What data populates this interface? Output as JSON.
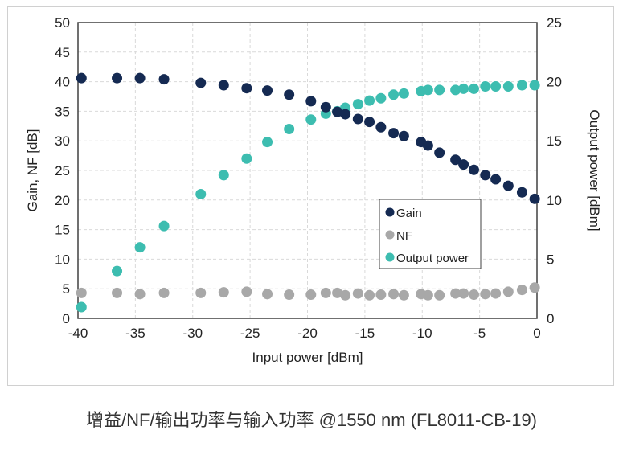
{
  "chart_data": {
    "type": "scatter",
    "xlabel": "Input power [dBm]",
    "ylabel": "Gain, NF [dB]",
    "y2label": "Output power [dBm]",
    "xlim": [
      -40,
      0
    ],
    "ylim": [
      0,
      50
    ],
    "y2lim": [
      0,
      25
    ],
    "xticks": [
      -40,
      -35,
      -30,
      -25,
      -20,
      -15,
      -10,
      -5,
      0
    ],
    "yticks": [
      0,
      5,
      10,
      15,
      20,
      25,
      30,
      35,
      40,
      45,
      50
    ],
    "y2ticks": [
      0,
      5,
      10,
      15,
      20,
      25
    ],
    "grid": true,
    "legend_position": "center-right",
    "x": [
      -39.7,
      -36.6,
      -34.6,
      -32.5,
      -29.3,
      -27.3,
      -25.3,
      -23.5,
      -21.6,
      -19.7,
      -18.4,
      -17.4,
      -16.7,
      -15.6,
      -14.6,
      -13.6,
      -12.5,
      -11.6,
      -10.1,
      -9.5,
      -8.5,
      -7.1,
      -6.4,
      -5.5,
      -4.5,
      -3.6,
      -2.5,
      -1.3,
      -0.2
    ],
    "series": [
      {
        "name": "Gain",
        "axis": "left",
        "color": "#152a52",
        "values": [
          40.6,
          40.6,
          40.6,
          40.4,
          39.8,
          39.4,
          38.9,
          38.5,
          37.8,
          36.7,
          35.7,
          34.9,
          34.5,
          33.7,
          33.2,
          32.3,
          31.3,
          30.8,
          29.8,
          29.2,
          28.0,
          26.8,
          26.0,
          25.1,
          24.2,
          23.5,
          22.4,
          21.3,
          20.2
        ]
      },
      {
        "name": "NF",
        "axis": "left",
        "color": "#a8a8a8",
        "values": [
          4.3,
          4.3,
          4.1,
          4.3,
          4.3,
          4.4,
          4.5,
          4.1,
          4.0,
          4.0,
          4.3,
          4.3,
          3.9,
          4.2,
          3.9,
          4.0,
          4.1,
          3.9,
          4.1,
          3.9,
          3.9,
          4.2,
          4.2,
          4.0,
          4.1,
          4.2,
          4.5,
          4.8,
          5.2
        ]
      },
      {
        "name": "Output power",
        "axis": "right",
        "color": "#3dbdb0",
        "values": [
          0.95,
          4.0,
          6.0,
          7.8,
          10.5,
          12.1,
          13.5,
          14.9,
          16.0,
          16.8,
          17.3,
          17.5,
          17.8,
          18.1,
          18.4,
          18.6,
          18.9,
          19.0,
          19.2,
          19.3,
          19.3,
          19.3,
          19.4,
          19.4,
          19.6,
          19.6,
          19.6,
          19.7,
          19.7
        ]
      }
    ]
  },
  "caption": "增益/NF/输出功率与输入功率 @1550 nm (FL8011-CB-19)"
}
